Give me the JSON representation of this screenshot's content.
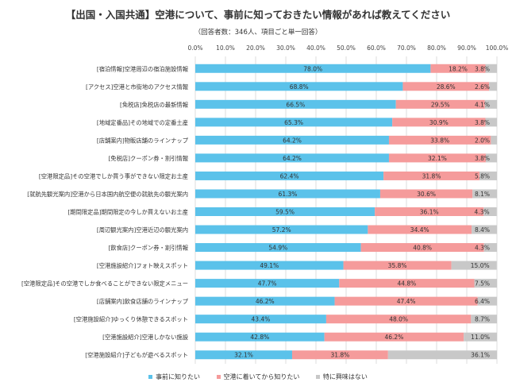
{
  "chart_data": {
    "type": "bar",
    "orientation": "horizontal",
    "stacked": true,
    "title": "【出国・入国共通】空港について、事前に知っておきたい情報があれば教えてください",
    "subtitle": "（回答者数：346人、項目ごと単一回答）",
    "xlim": [
      0,
      100
    ],
    "x_ticks": [
      "0.0%",
      "10.0%",
      "20.0%",
      "30.0%",
      "40.0%",
      "50.0%",
      "60.0%",
      "70.0%",
      "80.0%",
      "90.0%",
      "100.0%"
    ],
    "grid": true,
    "legend_position": "bottom",
    "categories": [
      "[宿泊情報]空港周辺の宿泊施設情報",
      "[アクセス]空港と市街地のアクセス情報",
      "[免税店]免税店の最新情報",
      "[地域定番品]その地域での定番土産",
      "[店舗案内]物販店舗のラインナップ",
      "[免税店]クーポン券・割引情報",
      "[空港限定品]その空港でしか買う事ができない限定お土産",
      "[就航先観光案内]空港から日本国内航空便の就航先の観光案内",
      "[期間限定品]期間限定の今しか買えないお土産",
      "[周辺観光案内]空港近辺の観光案内",
      "[飲食店]クーポン券・割引情報",
      "[空港施設紹介]フォト映えスポット",
      "[空港限定品]その空港でしか食べることができない限定メニュー",
      "[店舗案内]飲食店舗のラインナップ",
      "[空港施設紹介]ゆっくり休憩できるスポット",
      "[空港施設紹介]空港しかない施設",
      "[空港施設紹介]子どもが遊べるスポット"
    ],
    "series": [
      {
        "name": "事前に知りたい",
        "color": "#5bc2ea",
        "values": [
          78.0,
          68.8,
          66.5,
          65.3,
          64.2,
          64.2,
          62.4,
          61.3,
          59.5,
          57.2,
          54.9,
          49.1,
          47.7,
          46.2,
          43.4,
          42.8,
          32.1
        ]
      },
      {
        "name": "空港に着いてから知りたい",
        "color": "#f59b9b",
        "values": [
          18.2,
          28.6,
          29.5,
          30.9,
          33.8,
          32.1,
          31.8,
          30.6,
          36.1,
          34.4,
          40.8,
          35.8,
          44.8,
          47.4,
          48.0,
          46.2,
          31.8
        ]
      },
      {
        "name": "特に興味はない",
        "color": "#c8c8c8",
        "values": [
          3.8,
          2.6,
          4.1,
          3.8,
          2.0,
          3.8,
          5.8,
          8.1,
          4.3,
          8.4,
          4.3,
          15.0,
          7.5,
          6.4,
          8.7,
          11.0,
          36.1
        ]
      }
    ]
  }
}
